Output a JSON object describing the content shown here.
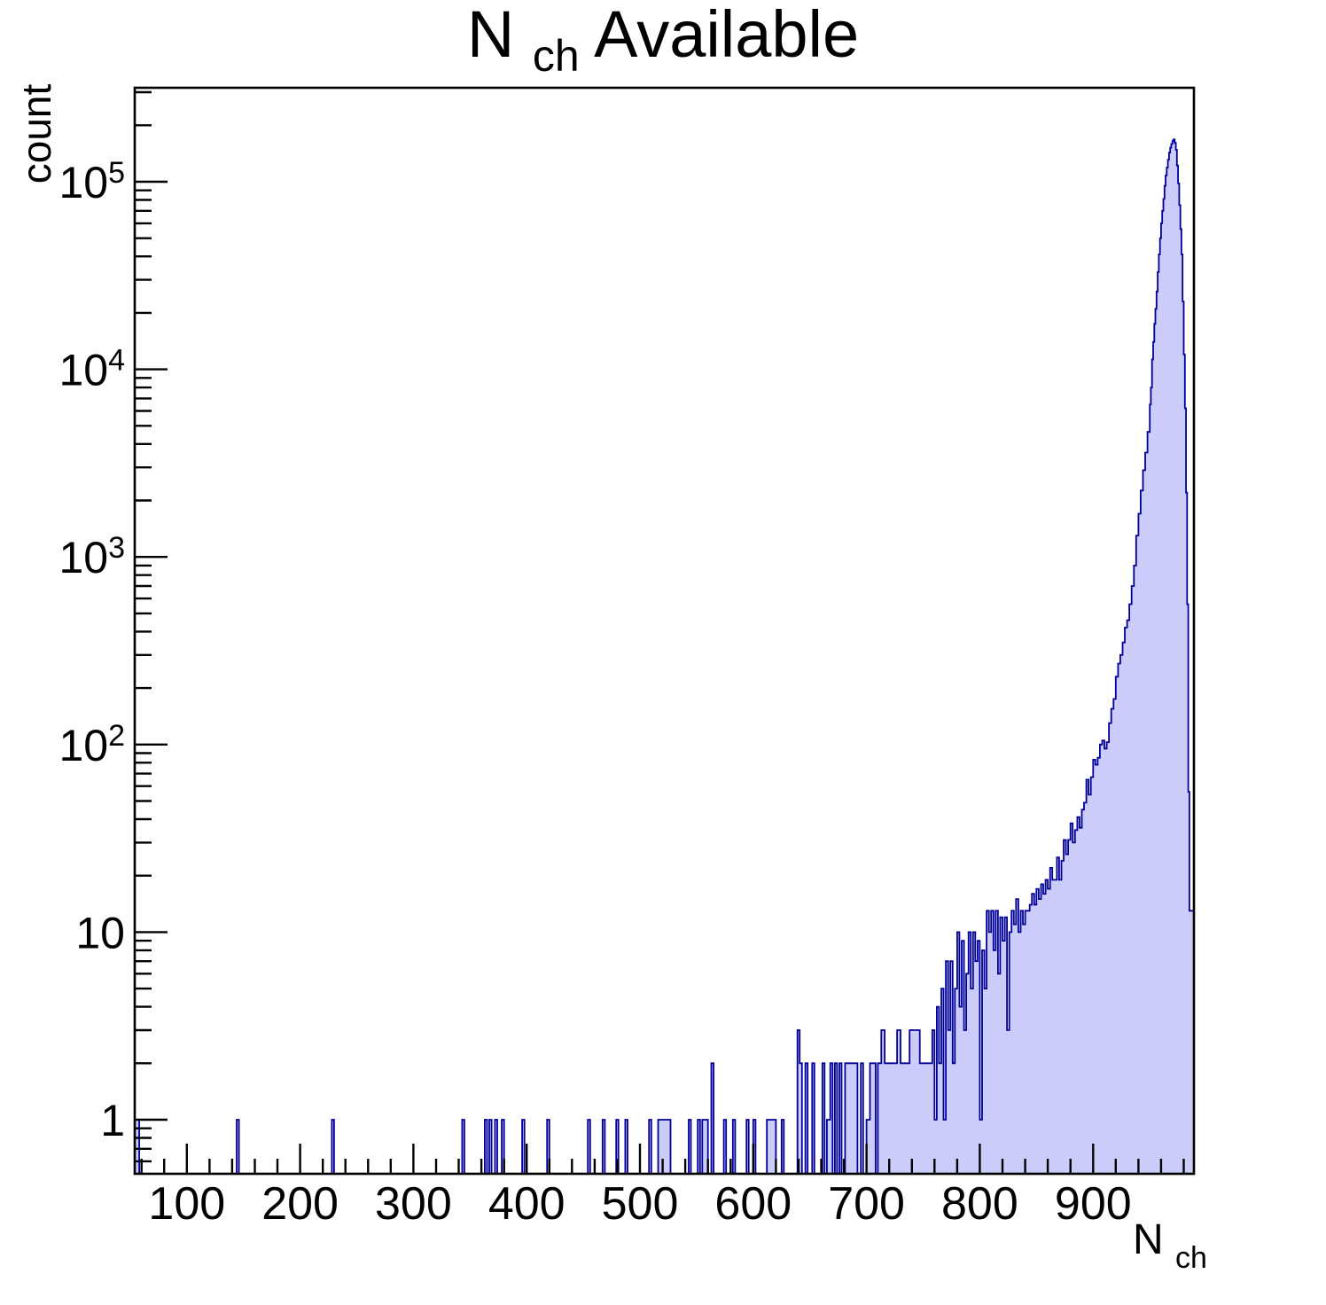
{
  "chart_data": {
    "type": "histogram",
    "title": {
      "main": "N",
      "sub": "ch",
      "rest": " Available"
    },
    "xlabel": {
      "main": "N",
      "sub": "ch"
    },
    "ylabel": "count",
    "x_axis": {
      "min": 54,
      "max": 989,
      "major_ticks": [
        100,
        200,
        300,
        400,
        500,
        600,
        700,
        800,
        900
      ],
      "major_tick_labels": [
        "100",
        "200",
        "300",
        "400",
        "500",
        "600",
        "700",
        "800",
        "900"
      ],
      "minor_step": 20
    },
    "y_axis": {
      "scale": "log",
      "min": 0.514,
      "max": 317000,
      "decade_labels": [
        {
          "value": 1,
          "text": "1"
        },
        {
          "value": 10,
          "text": "10"
        },
        {
          "value": 100,
          "base": "10",
          "exp": "2"
        },
        {
          "value": 1000,
          "base": "10",
          "exp": "3"
        },
        {
          "value": 10000,
          "base": "10",
          "exp": "4"
        },
        {
          "value": 100000,
          "base": "10",
          "exp": "5"
        }
      ]
    },
    "grid": false,
    "legend": null,
    "colors": {
      "fill": "#ccccfa",
      "line": "#000099",
      "axis": "#000000"
    },
    "bins_format": "[x_low, count]; bin extends to next listed x when within 3 units, otherwise width 2; count axis is log",
    "bins": [
      [
        54,
        1
      ],
      [
        56,
        1
      ],
      [
        144,
        1
      ],
      [
        228,
        1
      ],
      [
        343,
        1
      ],
      [
        363,
        1
      ],
      [
        367,
        1
      ],
      [
        372,
        1
      ],
      [
        378,
        1
      ],
      [
        396,
        1
      ],
      [
        418,
        1
      ],
      [
        454,
        1
      ],
      [
        467,
        1
      ],
      [
        479,
        1
      ],
      [
        487,
        1
      ],
      [
        508,
        1
      ],
      [
        516,
        1
      ],
      [
        519,
        1
      ],
      [
        522,
        1
      ],
      [
        525,
        1
      ],
      [
        543,
        1
      ],
      [
        551,
        1
      ],
      [
        555,
        1
      ],
      [
        558,
        1
      ],
      [
        563,
        2
      ],
      [
        574,
        1
      ],
      [
        582,
        1
      ],
      [
        594,
        1
      ],
      [
        600,
        1
      ],
      [
        612,
        1
      ],
      [
        614,
        1
      ],
      [
        616,
        1
      ],
      [
        618,
        1
      ],
      [
        625,
        1
      ],
      [
        639,
        3
      ],
      [
        641,
        2
      ],
      [
        646,
        2
      ],
      [
        652,
        2
      ],
      [
        661,
        2
      ],
      [
        665,
        1
      ],
      [
        668,
        2
      ],
      [
        672,
        2
      ],
      [
        676,
        2
      ],
      [
        681,
        2
      ],
      [
        684,
        2
      ],
      [
        687,
        2
      ],
      [
        690,
        2
      ],
      [
        695,
        2
      ],
      [
        700,
        1
      ],
      [
        703,
        2
      ],
      [
        706,
        2
      ],
      [
        710,
        2
      ],
      [
        713,
        3
      ],
      [
        716,
        2
      ],
      [
        719,
        2
      ],
      [
        722,
        2
      ],
      [
        725,
        2
      ],
      [
        727,
        3
      ],
      [
        730,
        2
      ],
      [
        733,
        2
      ],
      [
        736,
        2
      ],
      [
        738,
        3
      ],
      [
        741,
        3
      ],
      [
        744,
        3
      ],
      [
        747,
        2
      ],
      [
        750,
        2
      ],
      [
        753,
        2
      ],
      [
        756,
        2
      ],
      [
        758,
        3
      ],
      [
        760,
        1
      ],
      [
        762,
        4
      ],
      [
        764,
        2
      ],
      [
        766,
        5
      ],
      [
        768,
        1
      ],
      [
        770,
        7
      ],
      [
        772,
        3
      ],
      [
        774,
        7
      ],
      [
        776,
        2
      ],
      [
        778,
        5
      ],
      [
        780,
        10
      ],
      [
        782,
        4
      ],
      [
        784,
        9
      ],
      [
        786,
        3
      ],
      [
        788,
        6
      ],
      [
        790,
        10
      ],
      [
        792,
        5
      ],
      [
        794,
        10
      ],
      [
        796,
        7
      ],
      [
        798,
        9
      ],
      [
        800,
        1
      ],
      [
        802,
        8
      ],
      [
        804,
        5
      ],
      [
        806,
        13
      ],
      [
        808,
        10
      ],
      [
        810,
        13
      ],
      [
        812,
        8
      ],
      [
        814,
        13
      ],
      [
        816,
        6
      ],
      [
        818,
        12
      ],
      [
        820,
        9
      ],
      [
        822,
        12
      ],
      [
        824,
        3
      ],
      [
        826,
        10
      ],
      [
        828,
        13
      ],
      [
        830,
        11
      ],
      [
        832,
        15
      ],
      [
        834,
        10
      ],
      [
        836,
        13
      ],
      [
        838,
        11
      ],
      [
        840,
        13
      ],
      [
        842,
        13
      ],
      [
        844,
        14
      ],
      [
        846,
        16
      ],
      [
        848,
        14
      ],
      [
        850,
        17
      ],
      [
        852,
        15
      ],
      [
        854,
        18
      ],
      [
        856,
        16
      ],
      [
        858,
        19
      ],
      [
        860,
        17
      ],
      [
        862,
        22
      ],
      [
        864,
        19
      ],
      [
        866,
        19
      ],
      [
        868,
        25
      ],
      [
        870,
        19
      ],
      [
        872,
        24
      ],
      [
        874,
        31
      ],
      [
        876,
        26
      ],
      [
        878,
        31
      ],
      [
        880,
        38
      ],
      [
        882,
        30
      ],
      [
        884,
        35
      ],
      [
        886,
        41
      ],
      [
        888,
        36
      ],
      [
        890,
        45
      ],
      [
        892,
        49
      ],
      [
        894,
        65
      ],
      [
        896,
        54
      ],
      [
        898,
        67
      ],
      [
        900,
        83
      ],
      [
        902,
        78
      ],
      [
        904,
        85
      ],
      [
        906,
        100
      ],
      [
        908,
        105
      ],
      [
        910,
        95
      ],
      [
        912,
        103
      ],
      [
        914,
        130
      ],
      [
        916,
        155
      ],
      [
        918,
        175
      ],
      [
        920,
        230
      ],
      [
        922,
        270
      ],
      [
        924,
        300
      ],
      [
        926,
        350
      ],
      [
        928,
        420
      ],
      [
        930,
        460
      ],
      [
        932,
        560
      ],
      [
        934,
        700
      ],
      [
        936,
        900
      ],
      [
        938,
        1300
      ],
      [
        940,
        1700
      ],
      [
        942,
        2260
      ],
      [
        944,
        2900
      ],
      [
        946,
        3600
      ],
      [
        948,
        4640
      ],
      [
        950,
        6500
      ],
      [
        951,
        8000
      ],
      [
        952,
        11300
      ],
      [
        953,
        14000
      ],
      [
        954,
        17500
      ],
      [
        955,
        21000
      ],
      [
        956,
        26000
      ],
      [
        957,
        33000
      ],
      [
        958,
        41000
      ],
      [
        959,
        50000
      ],
      [
        960,
        60000
      ],
      [
        961,
        70000
      ],
      [
        962,
        81000
      ],
      [
        963,
        95000
      ],
      [
        964,
        108000
      ],
      [
        965,
        119000
      ],
      [
        966,
        131000
      ],
      [
        967,
        143000
      ],
      [
        968,
        152000
      ],
      [
        969,
        159000
      ],
      [
        970,
        165000
      ],
      [
        971,
        168000
      ],
      [
        972,
        161000
      ],
      [
        973,
        148000
      ],
      [
        974,
        122000
      ],
      [
        975,
        98000
      ],
      [
        976,
        75000
      ],
      [
        977,
        56000
      ],
      [
        978,
        41000
      ],
      [
        979,
        23000
      ],
      [
        980,
        12000
      ],
      [
        981,
        6200
      ],
      [
        982,
        2200
      ],
      [
        983,
        560
      ],
      [
        984,
        56
      ],
      [
        985,
        13
      ],
      [
        986,
        13
      ],
      [
        987,
        13
      ],
      [
        988,
        13
      ]
    ]
  }
}
